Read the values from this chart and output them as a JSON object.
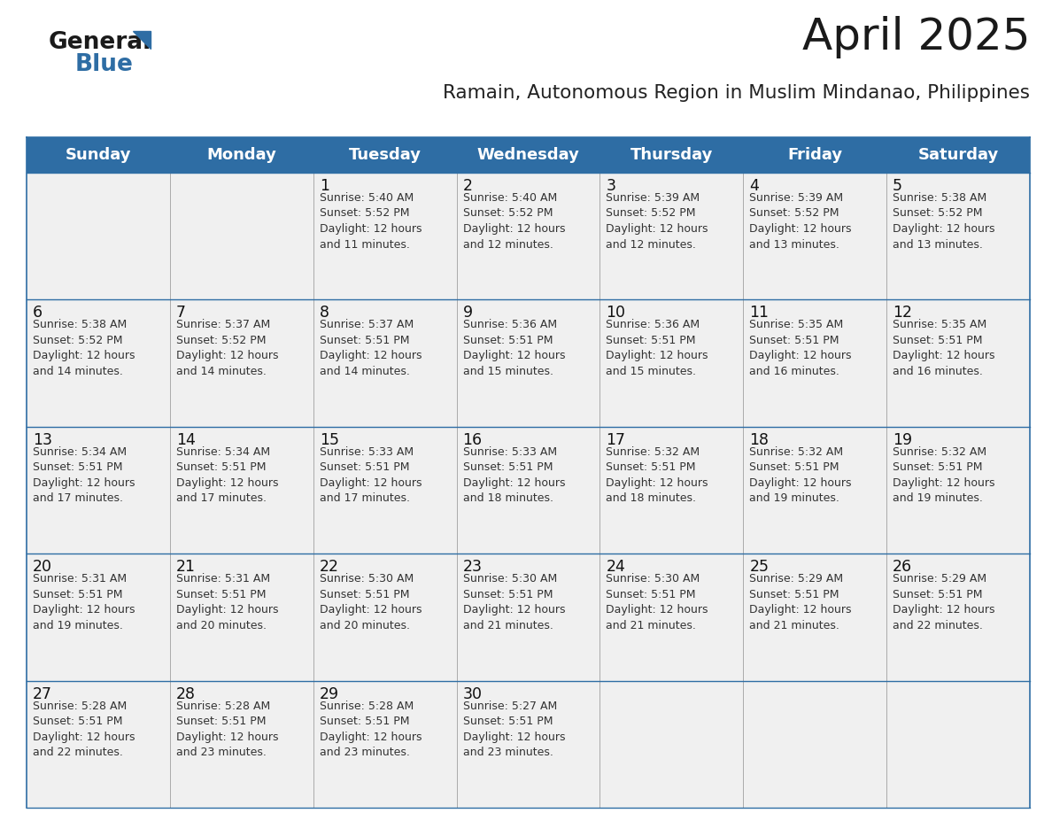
{
  "title": "April 2025",
  "subtitle": "Ramain, Autonomous Region in Muslim Mindanao, Philippines",
  "days_of_week": [
    "Sunday",
    "Monday",
    "Tuesday",
    "Wednesday",
    "Thursday",
    "Friday",
    "Saturday"
  ],
  "header_bg_color": "#2E6DA4",
  "header_text_color": "#FFFFFF",
  "cell_bg_color": "#F0F0F0",
  "border_color": "#2E6DA4",
  "title_color": "#1a1a1a",
  "subtitle_color": "#222222",
  "day_number_color": "#111111",
  "cell_text_color": "#333333",
  "separator_color": "#AAAAAA",
  "calendar_data": [
    [
      {
        "day": 0,
        "info": ""
      },
      {
        "day": 0,
        "info": ""
      },
      {
        "day": 1,
        "info": "Sunrise: 5:40 AM\nSunset: 5:52 PM\nDaylight: 12 hours\nand 11 minutes."
      },
      {
        "day": 2,
        "info": "Sunrise: 5:40 AM\nSunset: 5:52 PM\nDaylight: 12 hours\nand 12 minutes."
      },
      {
        "day": 3,
        "info": "Sunrise: 5:39 AM\nSunset: 5:52 PM\nDaylight: 12 hours\nand 12 minutes."
      },
      {
        "day": 4,
        "info": "Sunrise: 5:39 AM\nSunset: 5:52 PM\nDaylight: 12 hours\nand 13 minutes."
      },
      {
        "day": 5,
        "info": "Sunrise: 5:38 AM\nSunset: 5:52 PM\nDaylight: 12 hours\nand 13 minutes."
      }
    ],
    [
      {
        "day": 6,
        "info": "Sunrise: 5:38 AM\nSunset: 5:52 PM\nDaylight: 12 hours\nand 14 minutes."
      },
      {
        "day": 7,
        "info": "Sunrise: 5:37 AM\nSunset: 5:52 PM\nDaylight: 12 hours\nand 14 minutes."
      },
      {
        "day": 8,
        "info": "Sunrise: 5:37 AM\nSunset: 5:51 PM\nDaylight: 12 hours\nand 14 minutes."
      },
      {
        "day": 9,
        "info": "Sunrise: 5:36 AM\nSunset: 5:51 PM\nDaylight: 12 hours\nand 15 minutes."
      },
      {
        "day": 10,
        "info": "Sunrise: 5:36 AM\nSunset: 5:51 PM\nDaylight: 12 hours\nand 15 minutes."
      },
      {
        "day": 11,
        "info": "Sunrise: 5:35 AM\nSunset: 5:51 PM\nDaylight: 12 hours\nand 16 minutes."
      },
      {
        "day": 12,
        "info": "Sunrise: 5:35 AM\nSunset: 5:51 PM\nDaylight: 12 hours\nand 16 minutes."
      }
    ],
    [
      {
        "day": 13,
        "info": "Sunrise: 5:34 AM\nSunset: 5:51 PM\nDaylight: 12 hours\nand 17 minutes."
      },
      {
        "day": 14,
        "info": "Sunrise: 5:34 AM\nSunset: 5:51 PM\nDaylight: 12 hours\nand 17 minutes."
      },
      {
        "day": 15,
        "info": "Sunrise: 5:33 AM\nSunset: 5:51 PM\nDaylight: 12 hours\nand 17 minutes."
      },
      {
        "day": 16,
        "info": "Sunrise: 5:33 AM\nSunset: 5:51 PM\nDaylight: 12 hours\nand 18 minutes."
      },
      {
        "day": 17,
        "info": "Sunrise: 5:32 AM\nSunset: 5:51 PM\nDaylight: 12 hours\nand 18 minutes."
      },
      {
        "day": 18,
        "info": "Sunrise: 5:32 AM\nSunset: 5:51 PM\nDaylight: 12 hours\nand 19 minutes."
      },
      {
        "day": 19,
        "info": "Sunrise: 5:32 AM\nSunset: 5:51 PM\nDaylight: 12 hours\nand 19 minutes."
      }
    ],
    [
      {
        "day": 20,
        "info": "Sunrise: 5:31 AM\nSunset: 5:51 PM\nDaylight: 12 hours\nand 19 minutes."
      },
      {
        "day": 21,
        "info": "Sunrise: 5:31 AM\nSunset: 5:51 PM\nDaylight: 12 hours\nand 20 minutes."
      },
      {
        "day": 22,
        "info": "Sunrise: 5:30 AM\nSunset: 5:51 PM\nDaylight: 12 hours\nand 20 minutes."
      },
      {
        "day": 23,
        "info": "Sunrise: 5:30 AM\nSunset: 5:51 PM\nDaylight: 12 hours\nand 21 minutes."
      },
      {
        "day": 24,
        "info": "Sunrise: 5:30 AM\nSunset: 5:51 PM\nDaylight: 12 hours\nand 21 minutes."
      },
      {
        "day": 25,
        "info": "Sunrise: 5:29 AM\nSunset: 5:51 PM\nDaylight: 12 hours\nand 21 minutes."
      },
      {
        "day": 26,
        "info": "Sunrise: 5:29 AM\nSunset: 5:51 PM\nDaylight: 12 hours\nand 22 minutes."
      }
    ],
    [
      {
        "day": 27,
        "info": "Sunrise: 5:28 AM\nSunset: 5:51 PM\nDaylight: 12 hours\nand 22 minutes."
      },
      {
        "day": 28,
        "info": "Sunrise: 5:28 AM\nSunset: 5:51 PM\nDaylight: 12 hours\nand 23 minutes."
      },
      {
        "day": 29,
        "info": "Sunrise: 5:28 AM\nSunset: 5:51 PM\nDaylight: 12 hours\nand 23 minutes."
      },
      {
        "day": 30,
        "info": "Sunrise: 5:27 AM\nSunset: 5:51 PM\nDaylight: 12 hours\nand 23 minutes."
      },
      {
        "day": 0,
        "info": ""
      },
      {
        "day": 0,
        "info": ""
      },
      {
        "day": 0,
        "info": ""
      }
    ]
  ]
}
